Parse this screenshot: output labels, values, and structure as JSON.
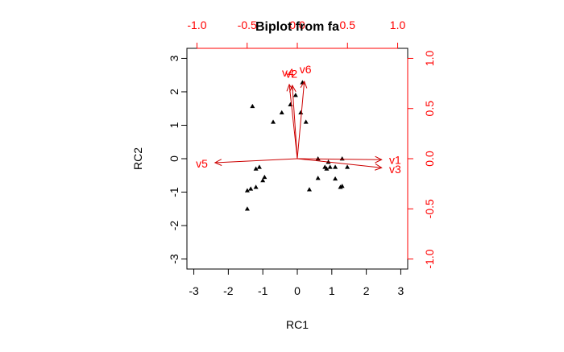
{
  "chart_data": {
    "type": "scatter",
    "title": "Biplot from fa",
    "xlabel": "RC1",
    "ylabel": "RC2",
    "xlim": [
      -3.2,
      3.2
    ],
    "ylim": [
      -3.3,
      3.3
    ],
    "x_ticks": [
      -3,
      -2,
      -1,
      0,
      1,
      2,
      3
    ],
    "y_ticks": [
      -3,
      -2,
      -1,
      0,
      1,
      2,
      3
    ],
    "loading_axis": {
      "lim": [
        -1.1,
        1.1
      ],
      "ticks": [
        -1.0,
        -0.5,
        0.0,
        0.5,
        1.0
      ],
      "tick_labels": [
        "-1.0",
        "-0.5",
        "0.0",
        "0.5",
        "1.0"
      ],
      "color": "#ff0000"
    },
    "grid": false,
    "legend": "none",
    "point_color": "#000000",
    "arrow_color": "#cc0000",
    "label_color": "#ff0000",
    "scores": [
      {
        "x": -1.3,
        "y": 1.57
      },
      {
        "x": -0.7,
        "y": 1.1
      },
      {
        "x": -0.45,
        "y": 1.38
      },
      {
        "x": -0.2,
        "y": 1.62
      },
      {
        "x": -0.05,
        "y": 1.9
      },
      {
        "x": 0.15,
        "y": 2.28
      },
      {
        "x": 0.1,
        "y": 1.38
      },
      {
        "x": 0.25,
        "y": 1.1
      },
      {
        "x": -1.1,
        "y": -0.25
      },
      {
        "x": -1.2,
        "y": -0.3
      },
      {
        "x": -0.95,
        "y": -0.55
      },
      {
        "x": -1.0,
        "y": -0.65
      },
      {
        "x": -1.45,
        "y": -0.95
      },
      {
        "x": -1.35,
        "y": -0.9
      },
      {
        "x": -1.2,
        "y": -0.85
      },
      {
        "x": -1.45,
        "y": -1.5
      },
      {
        "x": 0.35,
        "y": -0.92
      },
      {
        "x": 0.6,
        "y": -0.58
      },
      {
        "x": 0.6,
        "y": 0.0
      },
      {
        "x": 0.8,
        "y": -0.25
      },
      {
        "x": 0.85,
        "y": -0.3
      },
      {
        "x": 0.9,
        "y": -0.1
      },
      {
        "x": 0.95,
        "y": -0.25
      },
      {
        "x": 1.1,
        "y": -0.25
      },
      {
        "x": 1.1,
        "y": -0.6
      },
      {
        "x": 1.3,
        "y": 0.0
      },
      {
        "x": 1.45,
        "y": -0.25
      },
      {
        "x": 1.3,
        "y": -0.82
      },
      {
        "x": 1.25,
        "y": -0.85
      }
    ],
    "loadings": [
      {
        "name": "v1",
        "x": 0.84,
        "y": -0.01
      },
      {
        "name": "v2",
        "x": -0.05,
        "y": 0.73
      },
      {
        "name": "v3",
        "x": 0.84,
        "y": -0.09
      },
      {
        "name": "v4",
        "x": -0.08,
        "y": 0.74
      },
      {
        "name": "v5",
        "x": -0.82,
        "y": -0.04
      },
      {
        "name": "v6",
        "x": 0.07,
        "y": 0.77
      }
    ]
  }
}
